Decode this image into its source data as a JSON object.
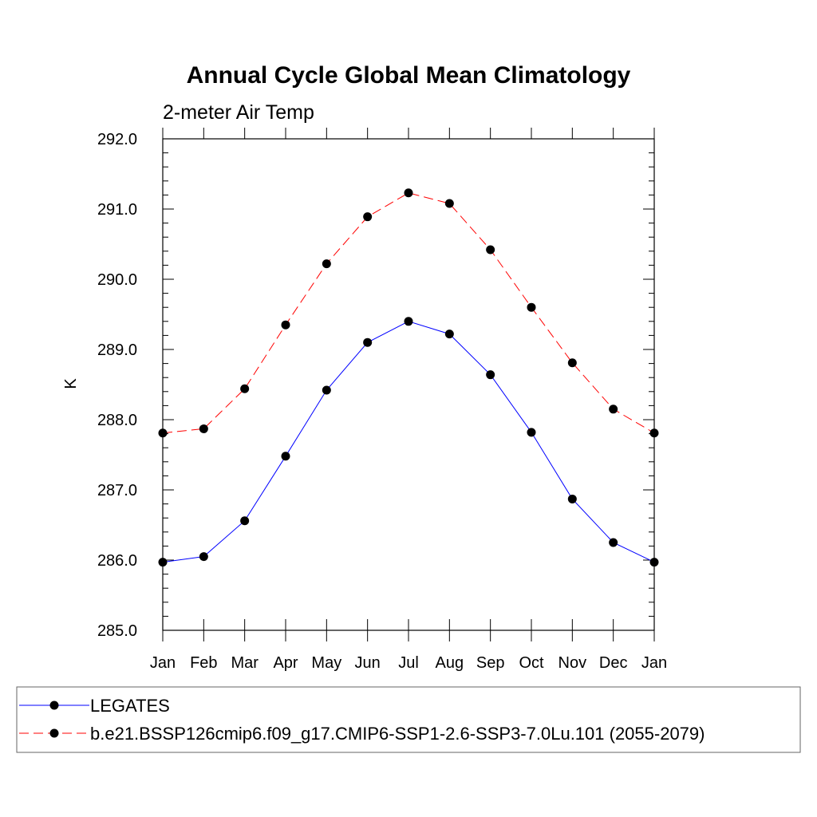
{
  "chart_data": {
    "type": "line",
    "title": "Annual Cycle Global Mean Climatology",
    "subtitle": "2-meter Air Temp",
    "xlabel": "",
    "ylabel": "K",
    "categories": [
      "Jan",
      "Feb",
      "Mar",
      "Apr",
      "May",
      "Jun",
      "Jul",
      "Aug",
      "Sep",
      "Oct",
      "Nov",
      "Dec",
      "Jan"
    ],
    "ylim": [
      285.0,
      292.0
    ],
    "yticks": [
      285.0,
      286.0,
      287.0,
      288.0,
      289.0,
      290.0,
      291.0,
      292.0
    ],
    "ytick_labels": [
      "285.0",
      "286.0",
      "287.0",
      "288.0",
      "289.0",
      "290.0",
      "291.0",
      "292.0"
    ],
    "grid": false,
    "legend_position": "bottom",
    "series": [
      {
        "name": "LEGATES",
        "color": "#0000ff",
        "dash": "solid",
        "values": [
          285.97,
          286.05,
          286.56,
          287.48,
          288.42,
          289.1,
          289.4,
          289.22,
          288.64,
          287.82,
          286.87,
          286.25,
          285.97
        ]
      },
      {
        "name": "b.e21.BSSP126cmip6.f09_g17.CMIP6-SSP1-2.6-SSP3-7.0Lu.101 (2055-2079)",
        "color": "#ff0000",
        "dash": "dashed",
        "values": [
          287.81,
          287.87,
          288.44,
          289.35,
          290.22,
          290.89,
          291.23,
          291.08,
          290.42,
          289.6,
          288.81,
          288.15,
          287.81
        ]
      }
    ]
  }
}
